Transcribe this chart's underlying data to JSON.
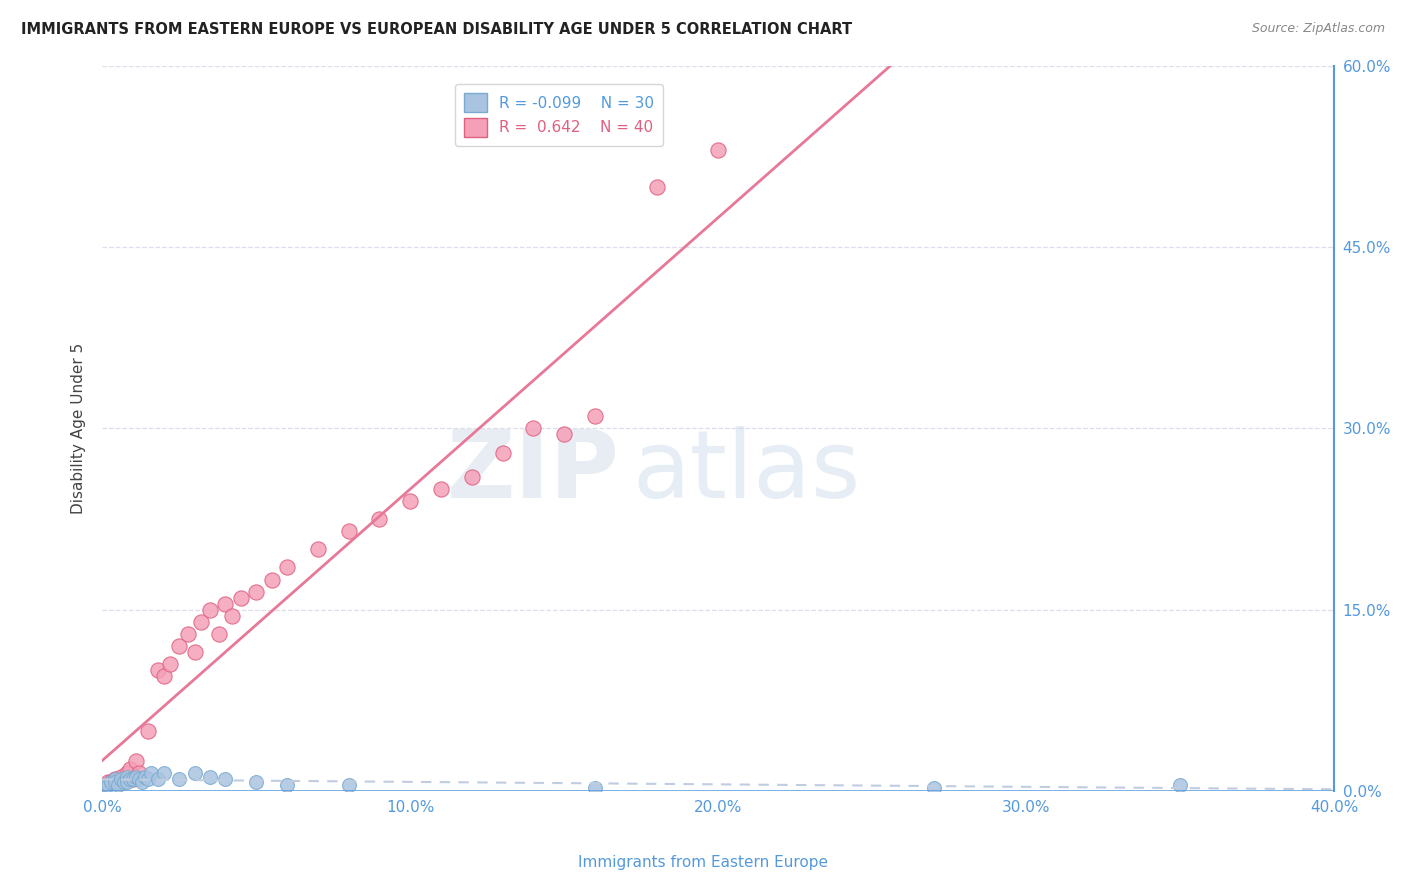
{
  "title": "IMMIGRANTS FROM EASTERN EUROPE VS EUROPEAN DISABILITY AGE UNDER 5 CORRELATION CHART",
  "source": "Source: ZipAtlas.com",
  "ylabel": "Disability Age Under 5",
  "x_label_bottom": "Immigrants from Eastern Europe",
  "xlim": [
    0.0,
    0.4
  ],
  "ylim": [
    0.0,
    0.6
  ],
  "x_ticks": [
    0.0,
    0.1,
    0.2,
    0.3,
    0.4
  ],
  "x_tick_labels": [
    "0.0%",
    "10.0%",
    "20.0%",
    "30.0%",
    "40.0%"
  ],
  "y_ticks_right": [
    0.0,
    0.15,
    0.3,
    0.45,
    0.6
  ],
  "y_tick_labels_right": [
    "0.0%",
    "15.0%",
    "30.0%",
    "45.0%",
    "60.0%"
  ],
  "legend_r1": "R = -0.099",
  "legend_n1": "N = 30",
  "legend_r2": "R =  0.642",
  "legend_n2": "N = 40",
  "color_blue": "#a8c4e0",
  "color_pink": "#f4a0b8",
  "color_blue_edge": "#7aaad0",
  "color_pink_edge": "#e06080",
  "color_trend_blue": "#c0cce0",
  "color_trend_pink": "#e87898",
  "color_title": "#222222",
  "color_right_axis": "#5599dd",
  "color_bottom_axis": "#5599dd",
  "color_grid": "#ddddee",
  "watermark_zip": "ZIP",
  "watermark_atlas": "atlas",
  "blue_x": [
    0.001,
    0.002,
    0.003,
    0.004,
    0.004,
    0.005,
    0.006,
    0.007,
    0.008,
    0.008,
    0.009,
    0.01,
    0.011,
    0.012,
    0.013,
    0.014,
    0.015,
    0.016,
    0.018,
    0.02,
    0.025,
    0.03,
    0.035,
    0.04,
    0.05,
    0.06,
    0.08,
    0.16,
    0.27,
    0.35
  ],
  "blue_y": [
    0.005,
    0.005,
    0.008,
    0.01,
    0.008,
    0.005,
    0.01,
    0.008,
    0.012,
    0.008,
    0.01,
    0.01,
    0.012,
    0.01,
    0.008,
    0.012,
    0.01,
    0.015,
    0.01,
    0.015,
    0.01,
    0.015,
    0.012,
    0.01,
    0.008,
    0.005,
    0.005,
    0.003,
    0.003,
    0.005
  ],
  "pink_x": [
    0.001,
    0.002,
    0.003,
    0.004,
    0.005,
    0.006,
    0.007,
    0.008,
    0.009,
    0.01,
    0.011,
    0.012,
    0.015,
    0.018,
    0.02,
    0.022,
    0.025,
    0.028,
    0.03,
    0.032,
    0.035,
    0.038,
    0.04,
    0.042,
    0.045,
    0.05,
    0.055,
    0.06,
    0.07,
    0.08,
    0.09,
    0.1,
    0.11,
    0.12,
    0.13,
    0.14,
    0.15,
    0.16,
    0.18,
    0.2
  ],
  "pink_y": [
    0.005,
    0.008,
    0.008,
    0.01,
    0.008,
    0.012,
    0.01,
    0.015,
    0.018,
    0.01,
    0.025,
    0.015,
    0.05,
    0.1,
    0.095,
    0.105,
    0.12,
    0.13,
    0.115,
    0.14,
    0.15,
    0.13,
    0.155,
    0.145,
    0.16,
    0.165,
    0.175,
    0.185,
    0.2,
    0.215,
    0.225,
    0.24,
    0.25,
    0.26,
    0.28,
    0.3,
    0.295,
    0.31,
    0.5,
    0.53
  ]
}
